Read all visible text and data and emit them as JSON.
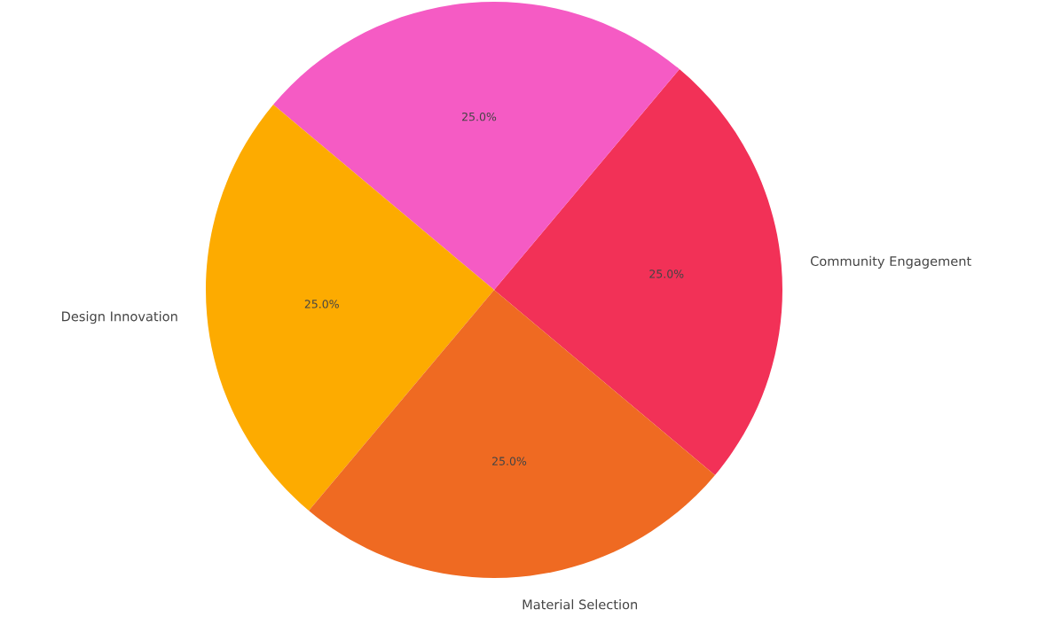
{
  "chart_data": {
    "type": "pie",
    "categories": [
      "Community Engagement",
      null,
      "Design Innovation",
      "Material Selection"
    ],
    "values": [
      25,
      25,
      25,
      25
    ],
    "colors": [
      "#f23157",
      "#f55bc4",
      "#fdab00",
      "#ef6a22"
    ],
    "value_labels": [
      "25.0%",
      "25.0%",
      "25.0%",
      "25.0%"
    ]
  }
}
